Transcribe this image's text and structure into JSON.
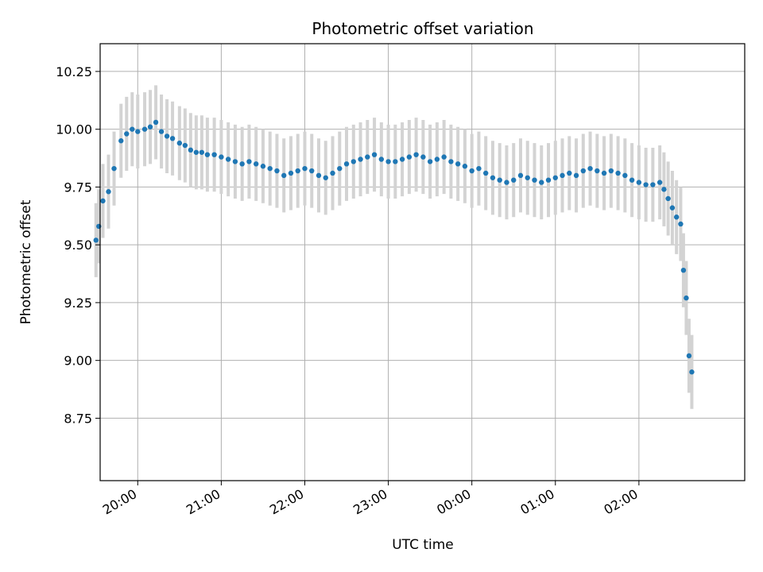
{
  "chart_data": {
    "type": "scatter",
    "title": "Photometric offset variation",
    "xlabel": "UTC time",
    "ylabel": "Photometric offset",
    "x_ticks": [
      "20:00",
      "21:00",
      "22:00",
      "23:00",
      "00:00",
      "01:00",
      "02:00"
    ],
    "y_ticks": [
      "8.75",
      "9.00",
      "9.25",
      "9.50",
      "9.75",
      "10.00",
      "10.25"
    ],
    "xlim": [
      "19:33",
      "03:16"
    ],
    "ylim": [
      8.48,
      10.37
    ],
    "grid": true,
    "error_bars": true,
    "error_bar_half_width": 0.16,
    "colors": {
      "points": "#1f77b4",
      "error_bars": "#d3d3d3",
      "grid": "#b0b0b0"
    },
    "series": [
      {
        "x": [
          "19:30",
          "19:32",
          "19:35",
          "19:39",
          "19:43",
          "19:48",
          "19:52",
          "19:56",
          "20:00",
          "20:05",
          "20:09",
          "20:13",
          "20:17",
          "20:21",
          "20:25",
          "20:30",
          "20:34",
          "20:38",
          "20:42",
          "20:46",
          "20:50",
          "20:55",
          "21:00",
          "21:05",
          "21:10",
          "21:15",
          "21:20",
          "21:25",
          "21:30",
          "21:35",
          "21:40",
          "21:45",
          "21:50",
          "21:55",
          "22:00",
          "22:05",
          "22:10",
          "22:15",
          "22:20",
          "22:25",
          "22:30",
          "22:35",
          "22:40",
          "22:45",
          "22:50",
          "22:55",
          "23:00",
          "23:05",
          "23:10",
          "23:15",
          "23:20",
          "23:25",
          "23:30",
          "23:35",
          "23:40",
          "23:45",
          "23:50",
          "23:55",
          "00:00",
          "00:05",
          "00:10",
          "00:15",
          "00:20",
          "00:25",
          "00:30",
          "00:35",
          "00:40",
          "00:45",
          "00:50",
          "00:55",
          "01:00",
          "01:05",
          "01:10",
          "01:15",
          "01:20",
          "01:25",
          "01:30",
          "01:35",
          "01:40",
          "01:45",
          "01:50",
          "01:55",
          "02:00",
          "02:05",
          "02:10",
          "02:15",
          "02:18",
          "02:21",
          "02:24",
          "02:27",
          "02:30",
          "02:32",
          "02:34",
          "02:36",
          "02:38"
        ],
        "y": [
          9.52,
          9.58,
          9.69,
          9.73,
          9.83,
          9.95,
          9.98,
          10.0,
          9.99,
          10.0,
          10.01,
          10.03,
          9.99,
          9.97,
          9.96,
          9.94,
          9.93,
          9.91,
          9.9,
          9.9,
          9.89,
          9.89,
          9.88,
          9.87,
          9.86,
          9.85,
          9.86,
          9.85,
          9.84,
          9.83,
          9.82,
          9.8,
          9.81,
          9.82,
          9.83,
          9.82,
          9.8,
          9.79,
          9.81,
          9.83,
          9.85,
          9.86,
          9.87,
          9.88,
          9.89,
          9.87,
          9.86,
          9.86,
          9.87,
          9.88,
          9.89,
          9.88,
          9.86,
          9.87,
          9.88,
          9.86,
          9.85,
          9.84,
          9.82,
          9.83,
          9.81,
          9.79,
          9.78,
          9.77,
          9.78,
          9.8,
          9.79,
          9.78,
          9.77,
          9.78,
          9.79,
          9.8,
          9.81,
          9.8,
          9.82,
          9.83,
          9.82,
          9.81,
          9.82,
          9.81,
          9.8,
          9.78,
          9.77,
          9.76,
          9.76,
          9.77,
          9.74,
          9.7,
          9.66,
          9.62,
          9.59,
          9.39,
          9.27,
          9.02,
          8.95
        ]
      }
    ]
  }
}
